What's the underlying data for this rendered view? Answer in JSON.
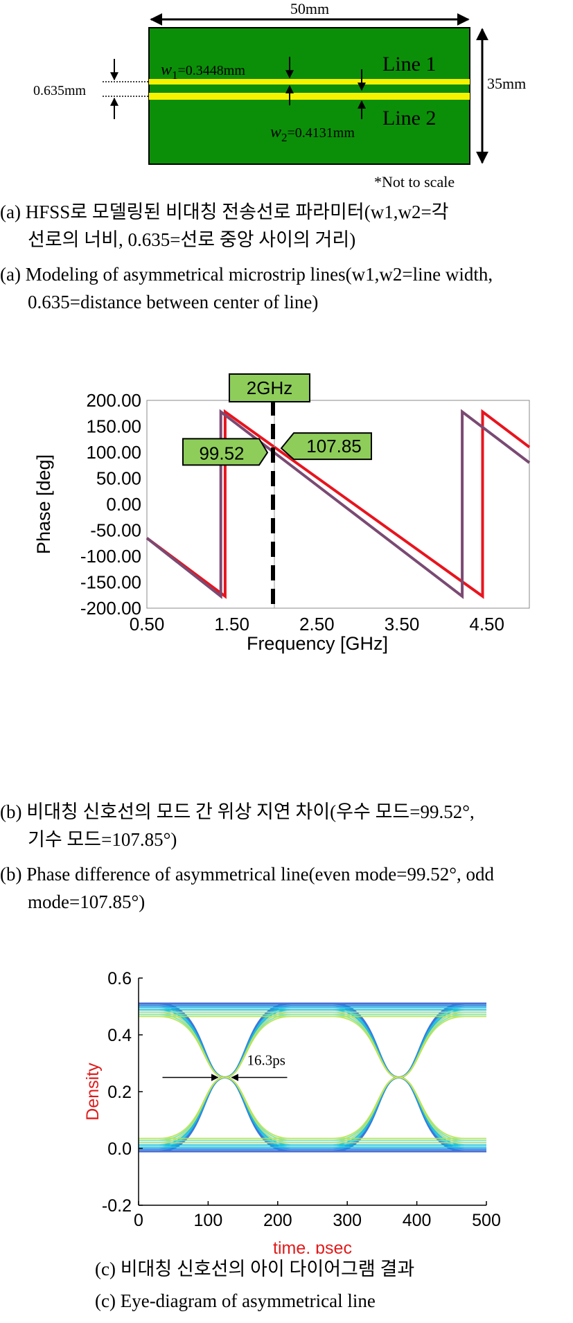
{
  "figure_a": {
    "width_label": "50mm",
    "height_label": "35mm",
    "gap_label": "0.635mm",
    "w1_label": "=0.3448mm",
    "w2_label": "=0.4131mm",
    "w1_symbol": "w",
    "w1_sub": "1",
    "w2_symbol": "w",
    "w2_sub": "2",
    "line1_label": "Line 1",
    "line2_label": "Line 2",
    "note": "*Not to scale",
    "board_color": "#0b8f08",
    "line_color": "#f7f200"
  },
  "captions": {
    "a_ko_1": "(a)  HFSS로 모델링된 비대칭 전송선로 파라미터(w1,w2=각",
    "a_ko_2": "선로의 너비, 0.635=선로 중앙 사이의 거리)",
    "a_en_1": "(a)  Modeling of asymmetrical microstrip lines(w1,w2=line width,",
    "a_en_2": "0.635=distance between center of line)",
    "b_ko_1": "(b)  비대칭 신호선의 모드 간 위상 지연 차이(우수 모드=99.52°,",
    "b_ko_2": "기수 모드=107.85°)",
    "b_en_1": "(b)  Phase difference of asymmetrical line(even mode=99.52°, odd",
    "b_en_2": "mode=107.85°)",
    "c_ko": "(c) 비대칭 신호선의 아이 다이어그램 결과",
    "c_en": "(c) Eye-diagram of asymmetrical line"
  },
  "chart_data": [
    {
      "type": "line",
      "xlabel": "Frequency [GHz]",
      "ylabel": "Phase [deg]",
      "xlim": [
        0.5,
        5.0
      ],
      "ylim": [
        -200,
        200
      ],
      "x_ticks": [
        "0.50",
        "1.50",
        "2.50",
        "3.50",
        "4.50"
      ],
      "x_tick_values": [
        0.5,
        1.5,
        2.5,
        3.5,
        4.5
      ],
      "y_ticks": [
        "200.00",
        "150.00",
        "100.00",
        "50.00",
        "0.00",
        "-50.00",
        "-100.00",
        "-150.00",
        "-200.00"
      ],
      "y_tick_values": [
        200,
        150,
        100,
        50,
        0,
        -50,
        -100,
        -150,
        -200
      ],
      "marker": {
        "x": 2.0,
        "label": "2GHz"
      },
      "annotations": [
        {
          "label": "99.52",
          "x": 2.0,
          "y": 99.52
        },
        {
          "label": "107.85",
          "x": 2.0,
          "y": 107.85
        }
      ],
      "series": [
        {
          "color": "#e8141e",
          "points": [
            [
              0.5,
              -65
            ],
            [
              1.42,
              -177
            ],
            [
              1.42,
              178
            ],
            [
              4.45,
              -177
            ],
            [
              4.45,
              178
            ],
            [
              5.0,
              110
            ]
          ]
        },
        {
          "color": "#7a4a73",
          "points": [
            [
              0.5,
              -65
            ],
            [
              1.37,
              -177
            ],
            [
              1.37,
              178
            ],
            [
              4.21,
              -177
            ],
            [
              4.21,
              178
            ],
            [
              5.0,
              80
            ]
          ]
        }
      ]
    },
    {
      "type": "scatter",
      "xlabel": "time, psec",
      "ylabel": "Density",
      "xlim": [
        0,
        500
      ],
      "ylim": [
        -0.2,
        0.6
      ],
      "x_ticks": [
        "0",
        "100",
        "200",
        "300",
        "400",
        "500"
      ],
      "x_tick_values": [
        0,
        100,
        200,
        300,
        400,
        500
      ],
      "y_ticks": [
        "0.6",
        "0.4",
        "0.2",
        "0.0",
        "-0.2"
      ],
      "y_tick_values": [
        0.6,
        0.4,
        0.2,
        0.0,
        -0.2
      ],
      "annotation": {
        "label": "16.3ps",
        "x": 124,
        "y": 0.25
      },
      "crossings_x": [
        124,
        374
      ],
      "high_level": 0.48,
      "low_level": 0.02
    }
  ]
}
